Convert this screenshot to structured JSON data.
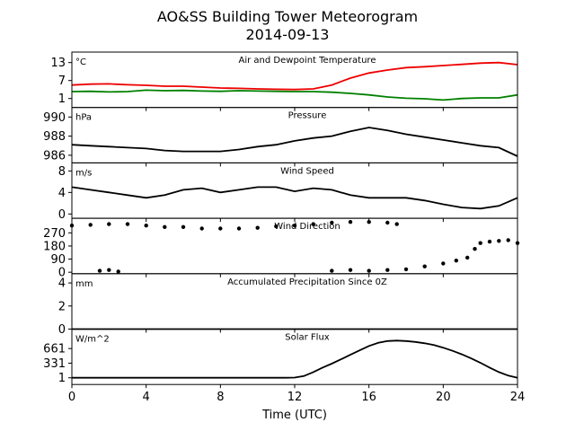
{
  "title": "AO&SS Building Tower Meteorogram",
  "subtitle": "2014-09-13",
  "colors": {
    "temperature": "#ee0000",
    "dewpoint": "#008000",
    "default": "#000000"
  },
  "chart_data": {
    "type": "line",
    "title": "AO&SS Building Tower Meteorogram",
    "subtitle": "2014-09-13",
    "xlabel": "Time (UTC)",
    "xlim": [
      0,
      24
    ],
    "xticks": [
      0,
      4,
      8,
      12,
      16,
      20,
      24
    ],
    "panels": [
      {
        "id": "temp",
        "label": "Air and Dewpoint Temperature",
        "unit": "°C",
        "ylim": [
          -2,
          16.5
        ],
        "yticks": [
          1,
          7,
          13
        ],
        "series": [
          {
            "key": "temperature",
            "style": "line",
            "color": "#ee0000",
            "x": [
              0,
              1,
              2,
              3,
              4,
              5,
              6,
              7,
              8,
              9,
              10,
              11,
              12,
              13,
              14,
              15,
              16,
              17,
              18,
              19,
              20,
              21,
              22,
              23,
              24
            ],
            "y": [
              5.5,
              5.8,
              5.9,
              5.6,
              5.4,
              5.1,
              5.1,
              4.8,
              4.5,
              4.4,
              4.2,
              4.1,
              4.0,
              4.2,
              5.5,
              7.8,
              9.5,
              10.5,
              11.3,
              11.6,
              12.0,
              12.4,
              12.8,
              13.0,
              12.3
            ]
          },
          {
            "key": "dewpoint",
            "style": "line",
            "color": "#008000",
            "x": [
              0,
              1,
              2,
              3,
              4,
              5,
              6,
              7,
              8,
              9,
              10,
              11,
              12,
              13,
              14,
              15,
              16,
              17,
              18,
              19,
              20,
              21,
              22,
              23,
              24
            ],
            "y": [
              3.3,
              3.4,
              3.2,
              3.3,
              3.8,
              3.6,
              3.7,
              3.5,
              3.4,
              3.6,
              3.5,
              3.4,
              3.3,
              3.3,
              3.1,
              2.7,
              2.2,
              1.5,
              1.1,
              0.9,
              0.5,
              1.0,
              1.2,
              1.2,
              2.2
            ]
          }
        ]
      },
      {
        "id": "pres",
        "label": "Pressure",
        "unit": "hPa",
        "ylim": [
          985.2,
          991
        ],
        "yticks": [
          986,
          988,
          990
        ],
        "series": [
          {
            "key": "pressure",
            "style": "line",
            "color": "#000000",
            "x": [
              0,
              1,
              2,
              3,
              4,
              5,
              6,
              7,
              8,
              9,
              10,
              11,
              12,
              13,
              14,
              15,
              16,
              17,
              18,
              19,
              20,
              21,
              22,
              23,
              24
            ],
            "y": [
              987.1,
              987.0,
              986.9,
              986.8,
              986.7,
              986.5,
              986.4,
              986.4,
              986.4,
              986.6,
              986.9,
              987.1,
              987.5,
              987.8,
              988.0,
              988.5,
              988.9,
              988.6,
              988.2,
              987.9,
              987.6,
              987.3,
              987.0,
              986.8,
              985.9
            ]
          }
        ]
      },
      {
        "id": "wspd",
        "label": "Wind Speed",
        "unit": "m/s",
        "ylim": [
          -0.8,
          9.5
        ],
        "yticks": [
          0,
          4,
          8
        ],
        "series": [
          {
            "key": "wind_speed",
            "style": "line",
            "color": "#000000",
            "x": [
              0,
              1,
              2,
              3,
              4,
              5,
              6,
              7,
              8,
              9,
              10,
              11,
              12,
              13,
              14,
              15,
              16,
              17,
              18,
              19,
              20,
              21,
              22,
              23,
              24
            ],
            "y": [
              5.0,
              4.5,
              4.0,
              3.5,
              3.0,
              3.5,
              4.5,
              4.8,
              4.0,
              4.5,
              5.0,
              5.0,
              4.2,
              4.8,
              4.5,
              3.5,
              3.0,
              3.0,
              3.0,
              2.5,
              1.8,
              1.2,
              1.0,
              1.5,
              3.0
            ]
          }
        ]
      },
      {
        "id": "wdir",
        "label": "Wind Direction",
        "unit": "",
        "ylim": [
          -10,
          370
        ],
        "yticks": [
          0,
          90,
          180,
          270
        ],
        "series": [
          {
            "key": "wind_direction_upper",
            "style": "scatter",
            "color": "#000000",
            "x": [
              0,
              1,
              2,
              3,
              4,
              5,
              6,
              7,
              8,
              9,
              10,
              11,
              12,
              13,
              14,
              15,
              16,
              17,
              17.5
            ],
            "y": [
              320,
              325,
              330,
              330,
              320,
              310,
              310,
              300,
              300,
              300,
              305,
              315,
              320,
              330,
              340,
              345,
              345,
              340,
              330
            ]
          },
          {
            "key": "wind_direction_lower",
            "style": "scatter",
            "color": "#000000",
            "x": [
              1.5,
              2,
              2.5,
              14,
              15,
              16,
              17,
              18,
              19,
              20,
              20.7,
              21.3,
              21.7,
              22,
              22.5,
              23,
              23.5,
              24
            ],
            "y": [
              10,
              15,
              5,
              10,
              15,
              10,
              15,
              20,
              40,
              60,
              80,
              100,
              160,
              200,
              210,
              215,
              220,
              200
            ]
          }
        ]
      },
      {
        "id": "precip",
        "label": "Accumulated Precipitation Since 0Z",
        "unit": "mm",
        "ylim": [
          0,
          4.8
        ],
        "yticks": [
          0,
          2,
          4
        ],
        "series": [
          {
            "key": "precipitation",
            "style": "line",
            "color": "#000000",
            "x": [
              0,
              24
            ],
            "y": [
              0,
              0
            ]
          }
        ]
      },
      {
        "id": "solar",
        "label": "Solar Flux",
        "unit": "W/m^2",
        "ylim": [
          -150,
          1100
        ],
        "yticks": [
          1,
          331,
          661
        ],
        "series": [
          {
            "key": "solar_flux",
            "style": "line",
            "color": "#000000",
            "x": [
              0,
              11.5,
              12,
              12.5,
              13,
              13.5,
              14,
              14.5,
              15,
              15.5,
              16,
              16.5,
              17,
              17.5,
              18,
              18.5,
              19,
              19.5,
              20,
              20.5,
              21,
              21.5,
              22,
              22.5,
              23,
              23.5,
              24
            ],
            "y": [
              1,
              1,
              5,
              40,
              130,
              230,
              320,
              420,
              520,
              620,
              720,
              790,
              830,
              840,
              830,
              810,
              780,
              740,
              680,
              610,
              530,
              440,
              340,
              230,
              130,
              50,
              1
            ]
          }
        ]
      }
    ]
  }
}
